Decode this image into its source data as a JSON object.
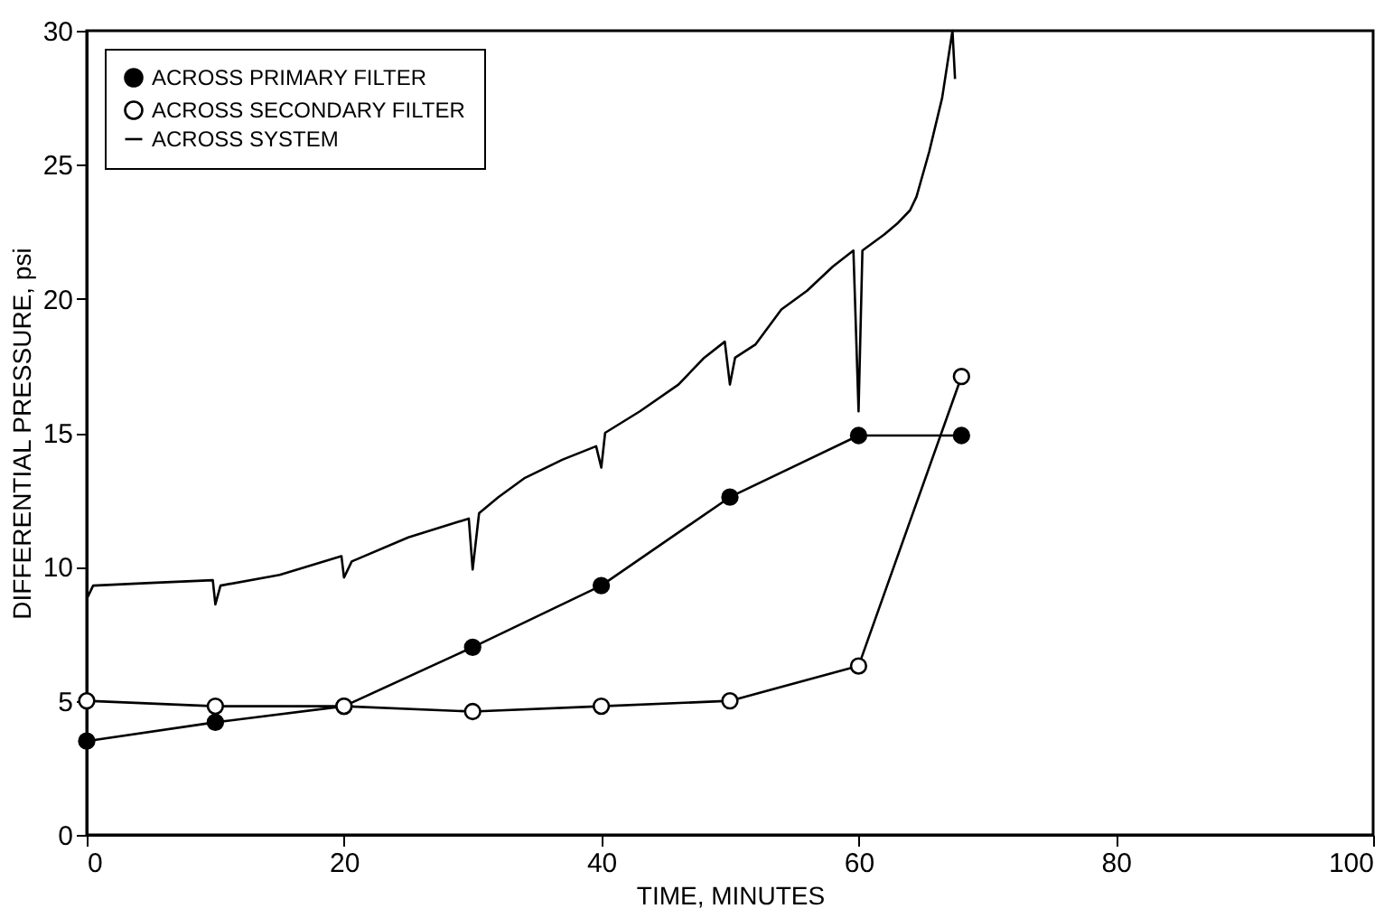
{
  "chart_data": {
    "type": "line",
    "xlabel": "TIME, MINUTES",
    "ylabel": "DIFFERENTIAL PRESSURE, psi",
    "xlim": [
      0,
      100
    ],
    "ylim": [
      0,
      30
    ],
    "xticks": [
      0,
      20,
      40,
      60,
      80,
      100
    ],
    "yticks": [
      0,
      5,
      10,
      15,
      20,
      25,
      30
    ],
    "grid": false,
    "legend": "top left",
    "line_style": "solid",
    "series": [
      {
        "name": "ACROSS PRIMARY FILTER",
        "color": "#000000",
        "marker": "circle",
        "x": [
          0,
          10,
          20,
          30,
          40,
          50,
          60,
          68
        ],
        "values": [
          3.5,
          4.2,
          4.8,
          7.0,
          9.3,
          12.6,
          14.9,
          14.9
        ]
      },
      {
        "name": "ACROSS SECONDARY FILTER",
        "color": "#000000",
        "marker": "circle",
        "x": [
          0,
          10,
          20,
          30,
          40,
          50,
          60,
          68
        ],
        "values": [
          5.0,
          4.8,
          4.8,
          4.6,
          4.8,
          5.0,
          6.3,
          17.1
        ]
      },
      {
        "name": "ACROSS SYSTEM",
        "color": "#000000",
        "marker": "none",
        "x": [
          0,
          0.5,
          5,
          9.8,
          10,
          10.4,
          15,
          19.8,
          20,
          20.6,
          25,
          29.7,
          30,
          30.5,
          32,
          34,
          37,
          39.6,
          40,
          40.3,
          43,
          46,
          48,
          49.6,
          50,
          50.4,
          52,
          54,
          56,
          58,
          59.6,
          60,
          60.3,
          62,
          63,
          64,
          64.5,
          65.5,
          66.5,
          67.3,
          67.5
        ],
        "values": [
          8.8,
          9.3,
          9.4,
          9.5,
          8.6,
          9.3,
          9.7,
          10.4,
          9.6,
          10.2,
          11.1,
          11.8,
          9.9,
          12.0,
          12.6,
          13.3,
          14.0,
          14.5,
          13.7,
          15.0,
          15.8,
          16.8,
          17.8,
          18.4,
          16.8,
          17.8,
          18.3,
          19.6,
          20.3,
          21.2,
          21.8,
          15.8,
          21.8,
          22.4,
          22.8,
          23.3,
          23.8,
          25.5,
          27.5,
          30.0,
          28.2
        ]
      }
    ]
  }
}
